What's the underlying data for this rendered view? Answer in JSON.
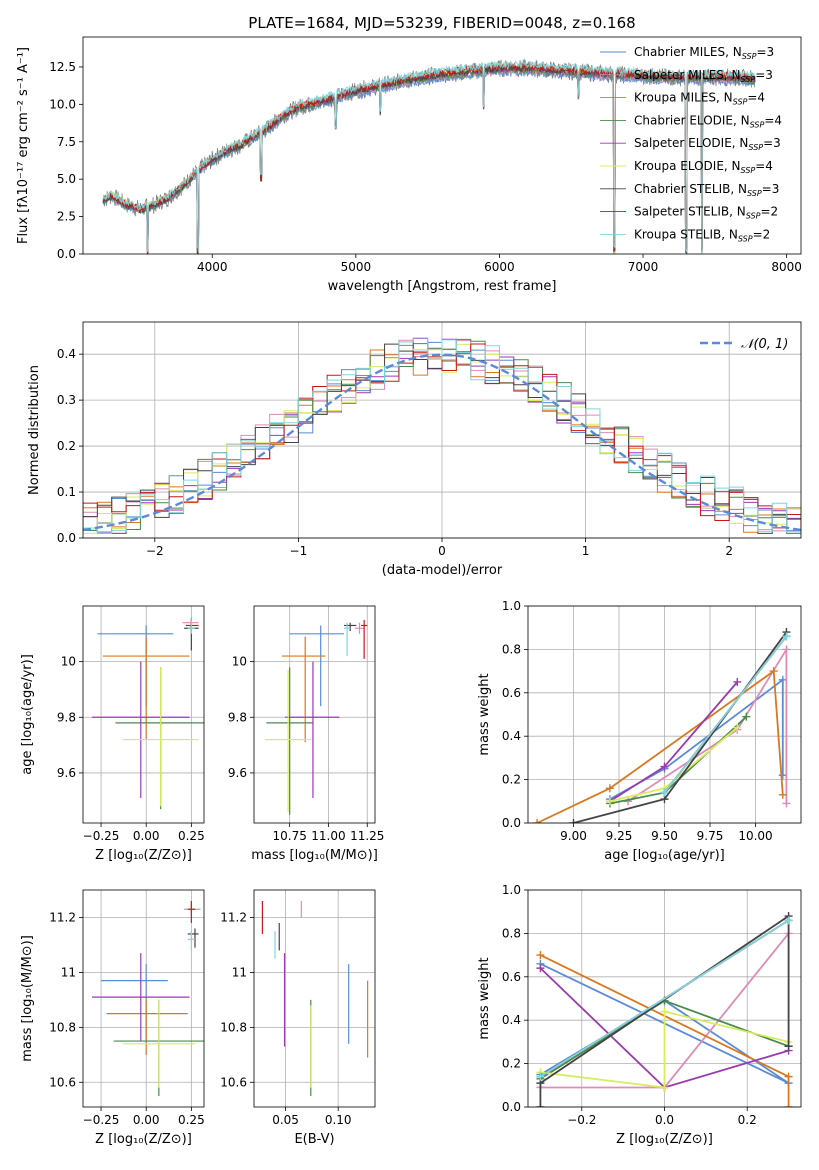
{
  "colors": {
    "Chabrier MILES": "#5b8bd8",
    "Salpeter MILES": "#e08ab8",
    "Kroupa MILES": "#d97820",
    "Chabrier ELODIE": "#4a8a4a",
    "Salpeter ELODIE": "#9a3ab0",
    "Kroupa ELODIE": "#d8ec60",
    "Chabrier STELIB": "#444444",
    "Salpeter STELIB": "#c81818",
    "Kroupa STELIB": "#7dd6e0",
    "model": "#5b8bd8",
    "data": "#808080"
  },
  "chart_data": [
    {
      "id": "spectrum",
      "type": "line",
      "title": "PLATE=1684, MJD=53239, FIBERID=0048, z=0.168",
      "xlabel": "wavelength [Angstrom, rest frame]",
      "ylabel": "Flux [fλ10⁻¹⁷ erg cm⁻² s⁻¹ A⁻¹]",
      "xlim": [
        3100,
        8100
      ],
      "ylim": [
        0,
        14.5
      ],
      "xticks": [
        4000,
        5000,
        6000,
        7000,
        8000
      ],
      "yticks": [
        0.0,
        2.5,
        5.0,
        7.5,
        10.0,
        12.5
      ],
      "grid": false,
      "legend_position": "top-right",
      "legend": [
        {
          "label": "Chabrier MILES, N",
          "sub": "SSP",
          "suffix": "=3",
          "key": "Chabrier MILES"
        },
        {
          "label": "Salpeter MILES, N",
          "sub": "SSP",
          "suffix": "=3",
          "key": "Salpeter MILES"
        },
        {
          "label": "Kroupa MILES, N",
          "sub": "SSP",
          "suffix": "=4",
          "key": "Kroupa MILES"
        },
        {
          "label": "Chabrier ELODIE, N",
          "sub": "SSP",
          "suffix": "=4",
          "key": "Chabrier ELODIE"
        },
        {
          "label": "Salpeter ELODIE, N",
          "sub": "SSP",
          "suffix": "=3",
          "key": "Salpeter ELODIE"
        },
        {
          "label": "Kroupa ELODIE, N",
          "sub": "SSP",
          "suffix": "=4",
          "key": "Kroupa ELODIE"
        },
        {
          "label": "Chabrier STELIB, N",
          "sub": "SSP",
          "suffix": "=3",
          "key": "Chabrier STELIB"
        },
        {
          "label": "Salpeter STELIB, N",
          "sub": "SSP",
          "suffix": "=2",
          "key": "Salpeter STELIB"
        },
        {
          "label": "Kroupa STELIB, N",
          "sub": "SSP",
          "suffix": "=2",
          "key": "Kroupa STELIB"
        }
      ],
      "continuum": {
        "x": [
          3240,
          3300,
          3400,
          3500,
          3600,
          3700,
          3800,
          3900,
          4000,
          4100,
          4200,
          4300,
          4400,
          4500,
          4600,
          4800,
          5000,
          5200,
          5400,
          5600,
          5800,
          6000,
          6200,
          6500,
          6800,
          7000,
          7200,
          7400,
          7600,
          7800
        ],
        "y": [
          3.6,
          3.9,
          3.3,
          3.0,
          3.3,
          3.8,
          4.6,
          5.6,
          6.3,
          6.9,
          7.3,
          7.9,
          8.5,
          9.3,
          9.8,
          10.3,
          10.9,
          11.3,
          11.7,
          12.0,
          12.2,
          12.4,
          12.4,
          12.2,
          12.0,
          11.9,
          11.8,
          11.8,
          11.8,
          11.7
        ]
      },
      "dips": [
        {
          "x": 3550,
          "y": 0.0
        },
        {
          "x": 3900,
          "y": 0.0
        },
        {
          "x": 4340,
          "y": 4.8
        },
        {
          "x": 4860,
          "y": 8.3
        },
        {
          "x": 5170,
          "y": 9.2
        },
        {
          "x": 5890,
          "y": 9.6
        },
        {
          "x": 6550,
          "y": 10.3
        },
        {
          "x": 6800,
          "y": 0.0
        },
        {
          "x": 7300,
          "y": 0.0
        },
        {
          "x": 7410,
          "y": 0.0
        }
      ]
    },
    {
      "id": "residual_hist",
      "type": "histogram",
      "xlabel": "(data-model)/error",
      "ylabel": "Normed distribution",
      "xlim": [
        -2.5,
        2.5
      ],
      "ylim": [
        0,
        0.47
      ],
      "xticks": [
        -2,
        -1,
        0,
        1,
        2
      ],
      "yticks": [
        0.0,
        0.1,
        0.2,
        0.3,
        0.4
      ],
      "grid": true,
      "legend_position": "top-right",
      "legend_label": "𝒩(0, 1)",
      "bin_width": 0.1
    },
    {
      "id": "age_vs_Z",
      "type": "scatter",
      "xlabel": "Z [log₁₀(Z/Z⊙)]",
      "ylabel": "age  [log₁₀(age/yr)]",
      "xlim": [
        -0.35,
        0.32
      ],
      "ylim": [
        9.42,
        10.2
      ],
      "xticks": [
        -0.25,
        0.0,
        0.25
      ],
      "xticklabels": [
        "−0.25",
        "0.00",
        "0.25"
      ],
      "yticks": [
        9.6,
        9.8,
        10.0
      ],
      "grid": true,
      "points": [
        {
          "key": "Chabrier MILES",
          "x": 0.0,
          "xerr": [
            0.27,
            0.15
          ],
          "y": 10.1,
          "yerr": [
            0.26,
            0.03
          ]
        },
        {
          "key": "Salpeter MILES",
          "x": 0.25,
          "xerr": [
            0.05,
            0.04
          ],
          "y": 10.14,
          "yerr": [
            0.03,
            0.02
          ]
        },
        {
          "key": "Kroupa MILES",
          "x": 0.0,
          "xerr": [
            0.24,
            0.24
          ],
          "y": 10.02,
          "yerr": [
            0.3,
            0.07
          ]
        },
        {
          "key": "Chabrier ELODIE",
          "x": 0.08,
          "xerr": [
            0.25,
            0.25
          ],
          "y": 9.78,
          "yerr": [
            0.31,
            0.2
          ]
        },
        {
          "key": "Salpeter ELODIE",
          "x": -0.03,
          "xerr": [
            0.27,
            0.27
          ],
          "y": 9.8,
          "yerr": [
            0.29,
            0.2
          ]
        },
        {
          "key": "Kroupa ELODIE",
          "x": 0.08,
          "xerr": [
            0.21,
            0.21
          ],
          "y": 9.72,
          "yerr": [
            0.24,
            0.26
          ]
        },
        {
          "key": "Chabrier STELIB",
          "x": 0.25,
          "xerr": [
            0.04,
            0.04
          ],
          "y": 10.12,
          "yerr": [
            0.08,
            0.03
          ]
        },
        {
          "key": "Salpeter STELIB",
          "x": 0.25,
          "xerr": [
            0.03,
            0.04
          ],
          "y": 10.13,
          "yerr": [
            0.02,
            0.02
          ]
        },
        {
          "key": "Kroupa STELIB",
          "x": 0.25,
          "xerr": [
            0.02,
            0.02
          ],
          "y": 10.12,
          "yerr": [
            0.02,
            0.03
          ]
        }
      ]
    },
    {
      "id": "age_vs_mass",
      "type": "scatter",
      "xlabel": "mass [log₁₀(M/M⊙)]",
      "xlim": [
        10.52,
        11.3
      ],
      "ylim": [
        9.42,
        10.2
      ],
      "xticks": [
        10.75,
        11.0,
        11.25
      ],
      "xticklabels": [
        "10.75",
        "11.00",
        "11.25"
      ],
      "yticks": [
        9.6,
        9.8,
        10.0
      ],
      "grid": true,
      "points": [
        {
          "key": "Chabrier MILES",
          "x": 10.95,
          "xerr": [
            0.2,
            0.15
          ],
          "y": 10.1,
          "yerr": [
            0.26,
            0.03
          ]
        },
        {
          "key": "Salpeter MILES",
          "x": 11.2,
          "xerr": [
            0.03,
            0.03
          ],
          "y": 10.12,
          "yerr": [
            0.02,
            0.02
          ]
        },
        {
          "key": "Kroupa MILES",
          "x": 10.85,
          "xerr": [
            0.15,
            0.13
          ],
          "y": 10.02,
          "yerr": [
            0.31,
            0.07
          ]
        },
        {
          "key": "Chabrier ELODIE",
          "x": 10.75,
          "xerr": [
            0.15,
            0.15
          ],
          "y": 9.78,
          "yerr": [
            0.33,
            0.2
          ]
        },
        {
          "key": "Salpeter ELODIE",
          "x": 10.9,
          "xerr": [
            0.18,
            0.17
          ],
          "y": 9.8,
          "yerr": [
            0.29,
            0.2
          ]
        },
        {
          "key": "Kroupa ELODIE",
          "x": 10.74,
          "xerr": [
            0.15,
            0.15
          ],
          "y": 9.72,
          "yerr": [
            0.26,
            0.25
          ]
        },
        {
          "key": "Chabrier STELIB",
          "x": 11.14,
          "xerr": [
            0.04,
            0.04
          ],
          "y": 10.13,
          "yerr": [
            0.02,
            0.01
          ]
        },
        {
          "key": "Salpeter STELIB",
          "x": 11.23,
          "xerr": [
            0.02,
            0.02
          ],
          "y": 10.13,
          "yerr": [
            0.12,
            0.02
          ]
        },
        {
          "key": "Kroupa STELIB",
          "x": 11.12,
          "xerr": [
            0.02,
            0.02
          ],
          "y": 10.12,
          "yerr": [
            0.1,
            0.02
          ]
        }
      ]
    },
    {
      "id": "mass_weight_vs_age",
      "type": "line",
      "xlabel": "age  [log₁₀(age/yr)]",
      "ylabel": "mass weight",
      "xlim": [
        8.75,
        10.25
      ],
      "ylim": [
        0,
        1.0
      ],
      "xticks": [
        9.0,
        9.25,
        9.5,
        9.75,
        10.0
      ],
      "xticklabels": [
        "9.00",
        "9.25",
        "9.50",
        "9.75",
        "10.00"
      ],
      "yticks": [
        0.0,
        0.2,
        0.4,
        0.6,
        0.8,
        1.0
      ],
      "grid": true,
      "series": [
        {
          "key": "Chabrier MILES",
          "x": [
            9.2,
            9.5,
            10.15,
            10.15
          ],
          "y": [
            0.11,
            0.25,
            0.66,
            0.22
          ]
        },
        {
          "key": "Salpeter MILES",
          "x": [
            9.3,
            9.9,
            10.17,
            10.17
          ],
          "y": [
            0.1,
            0.43,
            0.8,
            0.09
          ]
        },
        {
          "key": "Kroupa MILES",
          "x": [
            8.8,
            9.2,
            10.1,
            10.15
          ],
          "y": [
            0.0,
            0.16,
            0.7,
            0.13
          ]
        },
        {
          "key": "Chabrier ELODIE",
          "x": [
            9.2,
            9.5,
            9.95
          ],
          "y": [
            0.09,
            0.14,
            0.49
          ]
        },
        {
          "key": "Salpeter ELODIE",
          "x": [
            9.2,
            9.5,
            9.9
          ],
          "y": [
            0.1,
            0.26,
            0.65
          ]
        },
        {
          "key": "Kroupa ELODIE",
          "x": [
            9.2,
            9.5,
            9.9
          ],
          "y": [
            0.1,
            0.16,
            0.44
          ]
        },
        {
          "key": "Chabrier STELIB",
          "x": [
            9.0,
            9.5,
            10.17
          ],
          "y": [
            0.0,
            0.11,
            0.88
          ]
        },
        {
          "key": "Salpeter STELIB",
          "x": [
            9.5,
            10.17
          ],
          "y": [
            0.14,
            0.86
          ]
        },
        {
          "key": "Kroupa STELIB",
          "x": [
            9.5,
            10.17
          ],
          "y": [
            0.14,
            0.86
          ]
        }
      ]
    },
    {
      "id": "mass_vs_Z",
      "type": "scatter",
      "xlabel": "Z [log₁₀(Z/Z⊙)]",
      "ylabel": "mass [log₁₀(M/M⊙)]",
      "xlim": [
        -0.35,
        0.32
      ],
      "ylim": [
        10.51,
        11.3
      ],
      "xticks": [
        -0.25,
        0.0,
        0.25
      ],
      "xticklabels": [
        "−0.25",
        "0.00",
        "0.25"
      ],
      "yticks": [
        10.6,
        10.8,
        11.0,
        11.2
      ],
      "grid": true,
      "points": [
        {
          "key": "Chabrier MILES",
          "x": 0.0,
          "xerr": [
            0.25,
            0.12
          ],
          "y": 10.97,
          "yerr": [
            0.23,
            0.06
          ]
        },
        {
          "key": "Salpeter MILES",
          "x": 0.25,
          "xerr": [
            0.04,
            0.05
          ],
          "y": 11.23,
          "yerr": [
            0.02,
            0.02
          ]
        },
        {
          "key": "Kroupa MILES",
          "x": 0.0,
          "xerr": [
            0.22,
            0.23
          ],
          "y": 10.85,
          "yerr": [
            0.15,
            0.05
          ]
        },
        {
          "key": "Chabrier ELODIE",
          "x": 0.07,
          "xerr": [
            0.25,
            0.25
          ],
          "y": 10.75,
          "yerr": [
            0.2,
            0.15
          ]
        },
        {
          "key": "Salpeter ELODIE",
          "x": -0.03,
          "xerr": [
            0.27,
            0.27
          ],
          "y": 10.91,
          "yerr": [
            0.16,
            0.16
          ]
        },
        {
          "key": "Kroupa ELODIE",
          "x": 0.07,
          "xerr": [
            0.2,
            0.2
          ],
          "y": 10.74,
          "yerr": [
            0.16,
            0.16
          ]
        },
        {
          "key": "Chabrier STELIB",
          "x": 0.27,
          "xerr": [
            0.04,
            0.02
          ],
          "y": 11.14,
          "yerr": [
            0.05,
            0.02
          ]
        },
        {
          "key": "Salpeter STELIB",
          "x": 0.25,
          "xerr": [
            0.02,
            0.02
          ],
          "y": 11.23,
          "yerr": [
            0.05,
            0.03
          ]
        },
        {
          "key": "Kroupa STELIB",
          "x": 0.25,
          "xerr": [
            0.02,
            0.02
          ],
          "y": 11.12,
          "yerr": [
            0.04,
            0.03
          ]
        }
      ]
    },
    {
      "id": "mass_vs_ebv",
      "type": "scatter",
      "xlabel": "E(B-V)",
      "xlim": [
        0.02,
        0.135
      ],
      "ylim": [
        10.51,
        11.3
      ],
      "xticks": [
        0.05,
        0.1
      ],
      "xticklabels": [
        "0.05",
        "0.10"
      ],
      "yticks": [
        10.6,
        10.8,
        11.0,
        11.2
      ],
      "grid": true,
      "points": [
        {
          "key": "Chabrier MILES",
          "x": 0.11,
          "xerr": [
            0,
            0
          ],
          "y": 10.88,
          "yerr": [
            0.14,
            0.15
          ]
        },
        {
          "key": "Salpeter MILES",
          "x": 0.065,
          "xerr": [
            0,
            0
          ],
          "y": 11.23,
          "yerr": [
            0.03,
            0.03
          ]
        },
        {
          "key": "Kroupa MILES",
          "x": 0.128,
          "xerr": [
            0,
            0
          ],
          "y": 10.83,
          "yerr": [
            0.14,
            0.14
          ]
        },
        {
          "key": "Chabrier ELODIE",
          "x": 0.074,
          "xerr": [
            0,
            0
          ],
          "y": 10.72,
          "yerr": [
            0.17,
            0.18
          ]
        },
        {
          "key": "Salpeter ELODIE",
          "x": 0.049,
          "xerr": [
            0,
            0
          ],
          "y": 10.9,
          "yerr": [
            0.17,
            0.17
          ]
        },
        {
          "key": "Kroupa ELODIE",
          "x": 0.074,
          "xerr": [
            0,
            0
          ],
          "y": 10.73,
          "yerr": [
            0.15,
            0.15
          ]
        },
        {
          "key": "Chabrier STELIB",
          "x": 0.044,
          "xerr": [
            0,
            0
          ],
          "y": 11.13,
          "yerr": [
            0.05,
            0.05
          ]
        },
        {
          "key": "Salpeter STELIB",
          "x": 0.028,
          "xerr": [
            0,
            0
          ],
          "y": 11.2,
          "yerr": [
            0.06,
            0.06
          ]
        },
        {
          "key": "Kroupa STELIB",
          "x": 0.04,
          "xerr": [
            0,
            0
          ],
          "y": 11.1,
          "yerr": [
            0.05,
            0.05
          ]
        }
      ]
    },
    {
      "id": "mass_weight_vs_Z",
      "type": "line",
      "xlabel": "Z [log₁₀(Z/Z⊙)]",
      "ylabel": "mass weight",
      "xlim": [
        -0.33,
        0.33
      ],
      "ylim": [
        0,
        1.0
      ],
      "xticks": [
        -0.2,
        0.0,
        0.2
      ],
      "xticklabels": [
        "−0.2",
        "0.0",
        "0.2"
      ],
      "yticks": [
        0.0,
        0.2,
        0.4,
        0.6,
        0.8,
        1.0
      ],
      "grid": true,
      "series": [
        {
          "key": "Chabrier MILES",
          "x": [
            -0.3,
            0.3,
            0.0,
            -0.3
          ],
          "y": [
            0.66,
            0.11,
            0.49,
            0.15
          ]
        },
        {
          "key": "Salpeter MILES",
          "x": [
            -0.3,
            0.0,
            0.3
          ],
          "y": [
            0.09,
            0.09,
            0.8
          ]
        },
        {
          "key": "Kroupa MILES",
          "x": [
            -0.3,
            0.3,
            0.3
          ],
          "y": [
            0.7,
            0.14,
            0.0
          ]
        },
        {
          "key": "Chabrier ELODIE",
          "x": [
            -0.3,
            0.0,
            0.3
          ],
          "y": [
            0.13,
            0.49,
            0.28
          ]
        },
        {
          "key": "Salpeter ELODIE",
          "x": [
            -0.3,
            0.0,
            0.3
          ],
          "y": [
            0.64,
            0.09,
            0.26
          ]
        },
        {
          "key": "Kroupa ELODIE",
          "x": [
            -0.3,
            0.0,
            0.0,
            0.3
          ],
          "y": [
            0.16,
            0.09,
            0.44,
            0.3
          ]
        },
        {
          "key": "Chabrier STELIB",
          "x": [
            -0.3,
            -0.3,
            0.3,
            0.3
          ],
          "y": [
            0.0,
            0.11,
            0.88,
            0.28
          ]
        },
        {
          "key": "Salpeter STELIB",
          "x": [
            -0.3,
            0.3
          ],
          "y": [
            0.14,
            0.86
          ]
        },
        {
          "key": "Kroupa STELIB",
          "x": [
            -0.3,
            0.3
          ],
          "y": [
            0.14,
            0.86
          ]
        }
      ]
    }
  ]
}
